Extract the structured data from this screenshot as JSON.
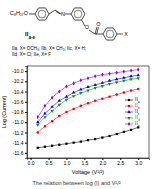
{
  "chart_data": {
    "type": "line",
    "title": "The relation between log (I) and V¹/²",
    "x_label": "Voltage (V¹/²)",
    "y_label": "Log (Current)",
    "x": [
      0.2,
      0.4,
      0.6,
      0.8,
      1.0,
      1.2,
      1.4,
      1.6,
      1.8,
      2.0,
      2.2,
      2.4,
      2.6,
      2.8,
      3.0
    ],
    "series": [
      {
        "name": "IIa",
        "color": "#000000",
        "marker": "square",
        "values": [
          -11.5,
          -11.48,
          -11.46,
          -11.44,
          -11.42,
          -11.4,
          -11.38,
          -11.35,
          -11.33,
          -11.3,
          -11.27,
          -11.23,
          -11.19,
          -11.15,
          -11.1
        ]
      },
      {
        "name": "IIb",
        "color": "#ff0000",
        "marker": "circle",
        "values": [
          -11.2,
          -11.08,
          -10.98,
          -10.88,
          -10.8,
          -10.74,
          -10.68,
          -10.63,
          -10.58,
          -10.54,
          -10.5,
          -10.46,
          -10.42,
          -10.38,
          -10.35
        ]
      },
      {
        "name": "IIc",
        "color": "#0000ff",
        "marker": "triangle",
        "values": [
          -11.0,
          -10.83,
          -10.7,
          -10.58,
          -10.5,
          -10.42,
          -10.36,
          -10.31,
          -10.27,
          -10.23,
          -10.19,
          -10.16,
          -10.13,
          -10.1,
          -10.08
        ]
      },
      {
        "name": "IId",
        "color": "#009900",
        "marker": "triangle-down",
        "values": [
          -11.05,
          -10.9,
          -10.78,
          -10.66,
          -10.56,
          -10.49,
          -10.43,
          -10.38,
          -10.33,
          -10.29,
          -10.25,
          -10.22,
          -10.19,
          -10.16,
          -10.14
        ]
      },
      {
        "name": "IIe",
        "color": "#9900cc",
        "marker": "diamond",
        "values": [
          -10.9,
          -10.68,
          -10.52,
          -10.4,
          -10.3,
          -10.24,
          -10.18,
          -10.14,
          -10.1,
          -10.07,
          -10.05,
          -10.03,
          -10.01,
          -9.99,
          -9.97
        ]
      }
    ],
    "xlim": [
      -0.1,
      3.3
    ],
    "ylim": [
      -11.7,
      -9.9
    ],
    "xticks": [
      {
        "value": 0,
        "label": "0.0"
      },
      {
        "value": 0.5,
        "label": "0.5"
      },
      {
        "value": 1,
        "label": "1.0"
      },
      {
        "value": 1.5,
        "label": "1.5"
      },
      {
        "value": 2,
        "label": "2.0"
      },
      {
        "value": 2.5,
        "label": "2.5"
      },
      {
        "value": 3,
        "label": "3.0"
      }
    ],
    "yticks": [
      {
        "value": -10,
        "label": "-10.0"
      },
      {
        "value": -10.2,
        "label": "-10.2"
      },
      {
        "value": -10.4,
        "label": "-10.4"
      },
      {
        "value": -10.6,
        "label": "-10.6"
      },
      {
        "value": -10.8,
        "label": "-10.8"
      },
      {
        "value": -11,
        "label": "-11.0"
      },
      {
        "value": -11.2,
        "label": "-11.2"
      },
      {
        "value": -11.4,
        "label": "-11.4"
      },
      {
        "value": -11.6,
        "label": "-11.6"
      }
    ],
    "legend": "center right",
    "grid": false
  },
  "structure": {
    "tail": "C₈H₁₇O",
    "imine": "N",
    "ester_o": "O",
    "carbonyl_o": "O",
    "substituent": "X",
    "compound": "IIa-e",
    "key": [
      "IIa, X= OCH₃; IIb, X= CH₃; IIc, X= H;",
      "IId, X= Cl; IIe, X= F"
    ]
  }
}
